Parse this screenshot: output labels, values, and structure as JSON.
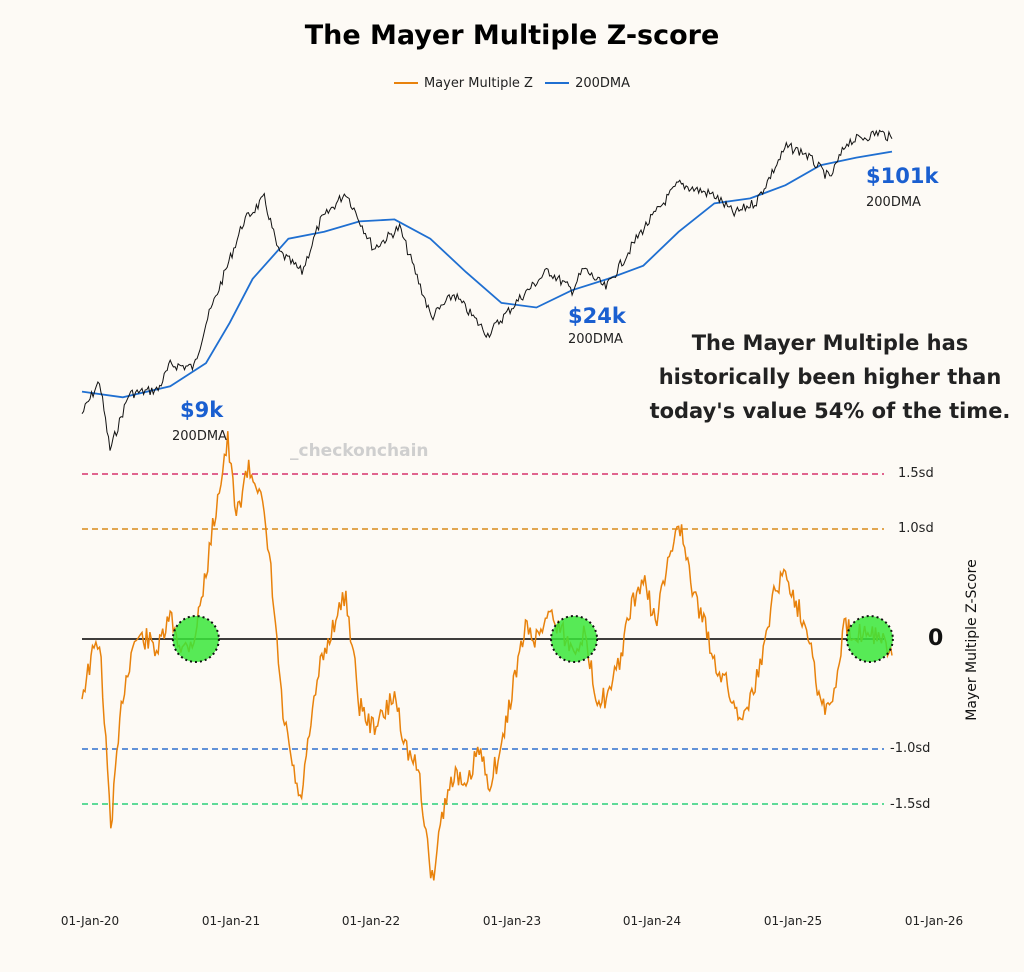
{
  "title": "The Mayer Multiple Z-score",
  "legend": [
    {
      "label": "Mayer Multiple Z",
      "color": "#e8820c"
    },
    {
      "label": "200DMA",
      "color": "#1f6fd1"
    }
  ],
  "note": "The Mayer Multiple has historically been higher than today's value 54% of the time.",
  "watermark": "_checkonchain",
  "ylabel": "Mayer Multiple Z-Score",
  "zero_label": "0",
  "price_labels": [
    {
      "value": "$9k",
      "sub": "200DMA"
    },
    {
      "value": "$24k",
      "sub": "200DMA"
    },
    {
      "value": "$101k",
      "sub": "200DMA"
    }
  ],
  "x_ticks": [
    "01-Jan-20",
    "01-Jan-21",
    "01-Jan-22",
    "01-Jan-23",
    "01-Jan-24",
    "01-Jan-25",
    "01-Jan-26"
  ],
  "chart_data": {
    "type": "line",
    "title": "The Mayer Multiple Z-score",
    "xlabel": "",
    "ylabel": "Mayer Multiple Z-Score",
    "xlim": [
      "2020-01-01",
      "2026-01-01"
    ],
    "ylim": [
      -2.3,
      1.9
    ],
    "reference_lines": [
      {
        "label": "1.5sd",
        "value": 1.5,
        "color": "#d6336c"
      },
      {
        "label": "1.0sd",
        "value": 1.0,
        "color": "#d98a1a"
      },
      {
        "label": "0",
        "value": 0,
        "color": "#222222"
      },
      {
        "label": "-1.0sd",
        "value": -1.0,
        "color": "#2f6fcf"
      },
      {
        "label": "-1.5sd",
        "value": -1.5,
        "color": "#2bcf7a"
      }
    ],
    "series": [
      {
        "name": "Mayer Multiple Z",
        "color": "#e8820c",
        "points": [
          [
            "2020-01-01",
            -0.5
          ],
          [
            "2020-02-01",
            -0.1
          ],
          [
            "2020-02-15",
            0.0
          ],
          [
            "2020-03-15",
            -1.7
          ],
          [
            "2020-04-15",
            -0.5
          ],
          [
            "2020-05-15",
            0.0
          ],
          [
            "2020-06-15",
            0.0
          ],
          [
            "2020-07-15",
            -0.1
          ],
          [
            "2020-08-15",
            0.2
          ],
          [
            "2020-09-15",
            -0.1
          ],
          [
            "2020-10-15",
            0.0
          ],
          [
            "2020-11-15",
            0.6
          ],
          [
            "2020-12-15",
            1.3
          ],
          [
            "2021-01-10",
            1.8
          ],
          [
            "2021-02-01",
            1.1
          ],
          [
            "2021-03-01",
            1.55
          ],
          [
            "2021-04-01",
            1.4
          ],
          [
            "2021-05-01",
            0.6
          ],
          [
            "2021-06-01",
            -0.7
          ],
          [
            "2021-07-15",
            -1.5
          ],
          [
            "2021-09-01",
            -0.3
          ],
          [
            "2021-10-15",
            0.2
          ],
          [
            "2021-11-10",
            0.4
          ],
          [
            "2021-12-15",
            -0.6
          ],
          [
            "2022-01-15",
            -0.8
          ],
          [
            "2022-02-15",
            -0.7
          ],
          [
            "2022-03-15",
            -0.5
          ],
          [
            "2022-04-15",
            -1.0
          ],
          [
            "2022-05-15",
            -1.2
          ],
          [
            "2022-06-20",
            -2.2
          ],
          [
            "2022-07-15",
            -1.6
          ],
          [
            "2022-08-15",
            -1.2
          ],
          [
            "2022-09-15",
            -1.4
          ],
          [
            "2022-10-15",
            -1.0
          ],
          [
            "2022-11-15",
            -1.3
          ],
          [
            "2022-12-15",
            -1.0
          ],
          [
            "2023-01-15",
            -0.4
          ],
          [
            "2023-02-15",
            0.1
          ],
          [
            "2023-03-15",
            0.0
          ],
          [
            "2023-04-15",
            0.25
          ],
          [
            "2023-05-15",
            0.1
          ],
          [
            "2023-06-15",
            -0.1
          ],
          [
            "2023-07-15",
            0.05
          ],
          [
            "2023-08-15",
            -0.5
          ],
          [
            "2023-09-15",
            -0.55
          ],
          [
            "2023-10-15",
            -0.2
          ],
          [
            "2023-11-15",
            0.3
          ],
          [
            "2023-12-15",
            0.55
          ],
          [
            "2024-01-15",
            0.15
          ],
          [
            "2024-03-15",
            1.1
          ],
          [
            "2024-04-15",
            0.5
          ],
          [
            "2024-05-15",
            0.2
          ],
          [
            "2024-06-15",
            -0.2
          ],
          [
            "2024-07-15",
            -0.4
          ],
          [
            "2024-08-15",
            -0.7
          ],
          [
            "2024-09-15",
            -0.55
          ],
          [
            "2024-10-15",
            -0.2
          ],
          [
            "2024-11-15",
            0.45
          ],
          [
            "2024-12-15",
            0.6
          ],
          [
            "2025-01-15",
            0.3
          ],
          [
            "2025-02-15",
            0.05
          ],
          [
            "2025-03-15",
            -0.6
          ],
          [
            "2025-04-15",
            -0.6
          ],
          [
            "2025-05-15",
            0.1
          ],
          [
            "2025-06-15",
            0.05
          ],
          [
            "2025-07-15",
            0.1
          ],
          [
            "2025-08-15",
            0.0
          ],
          [
            "2025-09-15",
            -0.15
          ]
        ]
      },
      {
        "name": "200DMA",
        "color": "#1f6fd1",
        "points": [
          [
            "2020-01-01",
            9000
          ],
          [
            "2020-04-15",
            8500
          ],
          [
            "2020-08-15",
            9500
          ],
          [
            "2020-11-15",
            12000
          ],
          [
            "2021-01-15",
            18000
          ],
          [
            "2021-03-15",
            28000
          ],
          [
            "2021-06-15",
            42000
          ],
          [
            "2021-09-15",
            45000
          ],
          [
            "2021-12-15",
            50000
          ],
          [
            "2022-03-15",
            51000
          ],
          [
            "2022-06-15",
            42000
          ],
          [
            "2022-09-15",
            30000
          ],
          [
            "2022-12-15",
            22000
          ],
          [
            "2023-03-15",
            21000
          ],
          [
            "2023-06-15",
            25000
          ],
          [
            "2023-09-15",
            28000
          ],
          [
            "2023-12-15",
            32000
          ],
          [
            "2024-03-15",
            45000
          ],
          [
            "2024-06-15",
            60000
          ],
          [
            "2024-09-15",
            63000
          ],
          [
            "2024-12-15",
            72000
          ],
          [
            "2025-03-15",
            88000
          ],
          [
            "2025-06-15",
            95000
          ],
          [
            "2025-09-15",
            101000
          ]
        ]
      },
      {
        "name": "Price",
        "color": "#111111",
        "points": [
          [
            "2020-01-01",
            7200
          ],
          [
            "2020-02-15",
            10000
          ],
          [
            "2020-03-13",
            5000
          ],
          [
            "2020-05-01",
            8800
          ],
          [
            "2020-07-15",
            9200
          ],
          [
            "2020-08-15",
            11800
          ],
          [
            "2020-10-15",
            11500
          ],
          [
            "2020-11-15",
            18000
          ],
          [
            "2020-12-31",
            29000
          ],
          [
            "2021-02-20",
            50000
          ],
          [
            "2021-04-14",
            63000
          ],
          [
            "2021-05-20",
            37000
          ],
          [
            "2021-07-20",
            30000
          ],
          [
            "2021-09-05",
            50000
          ],
          [
            "2021-11-10",
            67000
          ],
          [
            "2022-01-20",
            38000
          ],
          [
            "2022-03-28",
            47000
          ],
          [
            "2022-06-18",
            19000
          ],
          [
            "2022-08-15",
            24000
          ],
          [
            "2022-11-10",
            16000
          ],
          [
            "2023-01-31",
            23000
          ],
          [
            "2023-04-14",
            30500
          ],
          [
            "2023-06-15",
            25000
          ],
          [
            "2023-07-15",
            31000
          ],
          [
            "2023-09-10",
            25500
          ],
          [
            "2023-12-05",
            44000
          ],
          [
            "2024-03-14",
            73000
          ],
          [
            "2024-06-15",
            65000
          ],
          [
            "2024-08-05",
            54000
          ],
          [
            "2024-10-01",
            61000
          ],
          [
            "2024-12-17",
            106000
          ],
          [
            "2025-02-01",
            100000
          ],
          [
            "2025-04-08",
            77000
          ],
          [
            "2025-05-22",
            111000
          ],
          [
            "2025-07-15",
            118000
          ],
          [
            "2025-08-14",
            123000
          ],
          [
            "2025-09-15",
            115000
          ]
        ]
      }
    ]
  }
}
